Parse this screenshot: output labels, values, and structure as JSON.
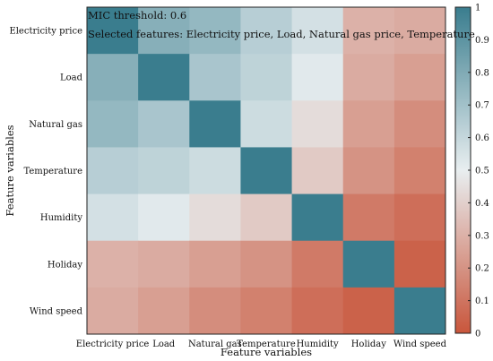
{
  "chart_data": {
    "type": "heatmap",
    "xlabel": "Feature variables",
    "ylabel": "Feature variables",
    "x_categories": [
      "Electricity price",
      "Load",
      "Natural gas",
      "Temperature",
      "Humidity",
      "Holiday",
      "Wind speed"
    ],
    "y_categories": [
      "Electricity price",
      "Load",
      "Natural gas",
      "Temperature",
      "Humidity",
      "Holiday",
      "Wind speed"
    ],
    "matrix": [
      [
        1.0,
        0.78,
        0.74,
        0.64,
        0.56,
        0.3,
        0.28
      ],
      [
        0.78,
        1.0,
        0.68,
        0.62,
        0.52,
        0.28,
        0.24
      ],
      [
        0.74,
        0.68,
        1.0,
        0.58,
        0.44,
        0.24,
        0.18
      ],
      [
        0.64,
        0.62,
        0.58,
        1.0,
        0.38,
        0.2,
        0.14
      ],
      [
        0.56,
        0.52,
        0.44,
        0.38,
        1.0,
        0.12,
        0.08
      ],
      [
        0.3,
        0.28,
        0.24,
        0.2,
        0.12,
        1.0,
        0.04
      ],
      [
        0.28,
        0.24,
        0.18,
        0.14,
        0.08,
        0.04,
        1.0
      ]
    ],
    "colorbar": {
      "range": [
        0,
        1
      ],
      "ticks": [
        "0",
        "0.1",
        "0.2",
        "0.3",
        "0.4",
        "0.5",
        "0.6",
        "0.7",
        "0.8",
        "0.9",
        "1"
      ],
      "low_color": "#c9563c",
      "mid_color": "#e8eef0",
      "high_color": "#3a7d8e"
    },
    "annotations": [
      "MIC threshold: 0.6",
      "Selected features: Electricity price, Load, Natural gas price, Temperature"
    ]
  }
}
